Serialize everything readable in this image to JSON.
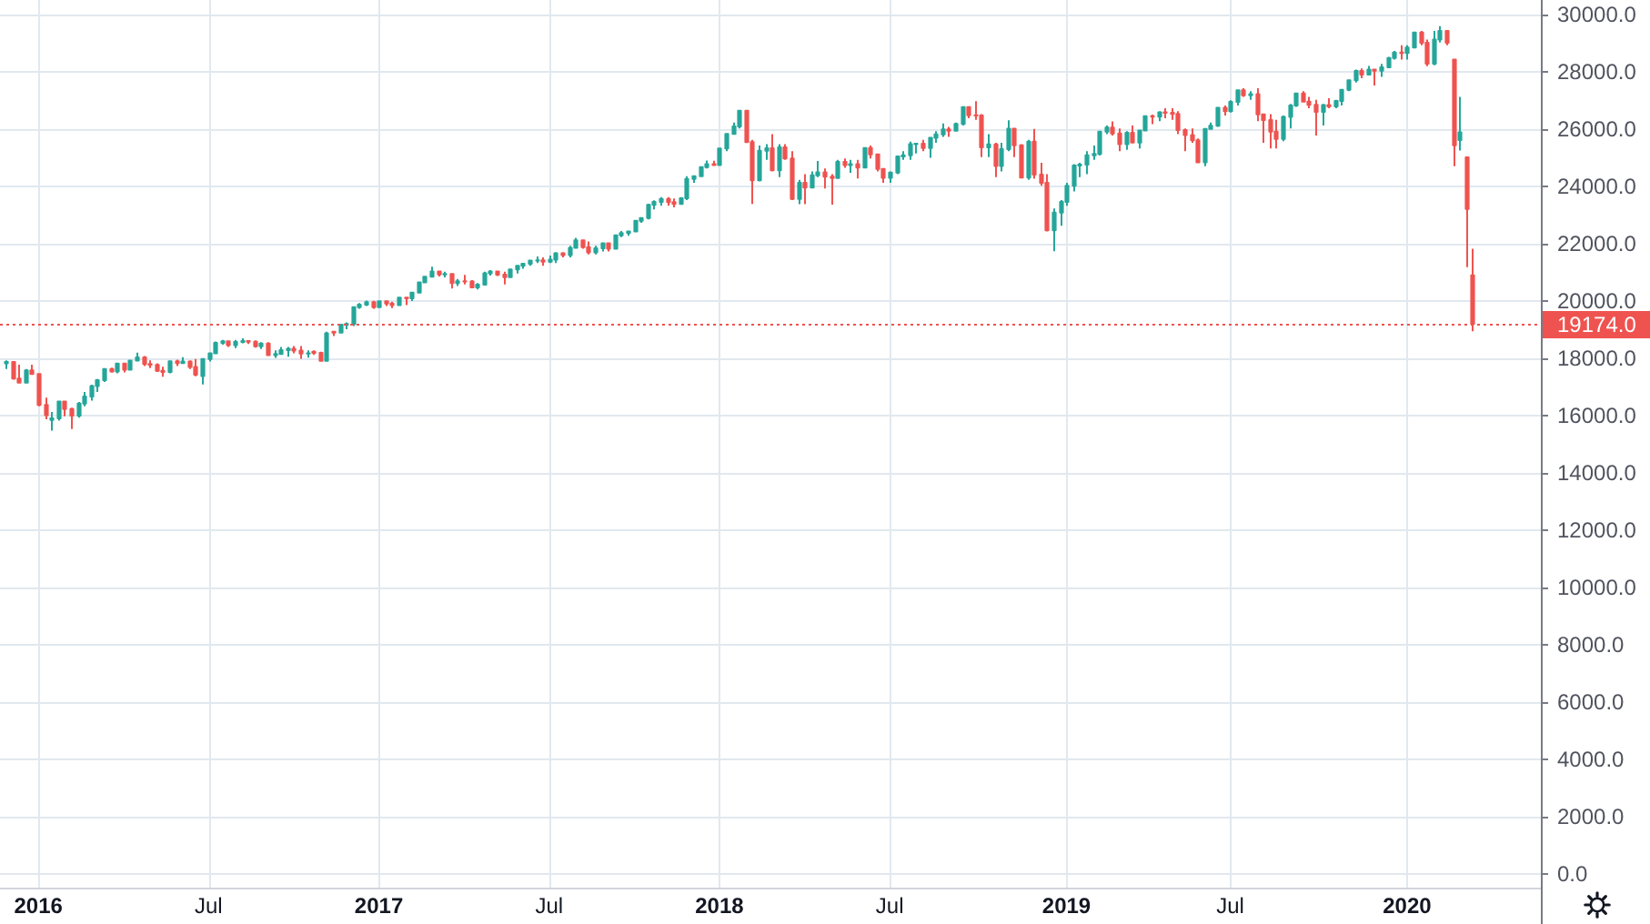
{
  "chart_data": {
    "type": "candlestick",
    "x": [
      "2015-11-30",
      "2015-12-07",
      "2015-12-14",
      "2015-12-21",
      "2015-12-28",
      "2016-01-04",
      "2016-01-11",
      "2016-01-18",
      "2016-01-25",
      "2016-02-01",
      "2016-02-08",
      "2016-02-15",
      "2016-02-22",
      "2016-02-29",
      "2016-03-07",
      "2016-03-14",
      "2016-03-21",
      "2016-03-28",
      "2016-04-04",
      "2016-04-11",
      "2016-04-18",
      "2016-04-25",
      "2016-05-02",
      "2016-05-09",
      "2016-05-16",
      "2016-05-23",
      "2016-05-30",
      "2016-06-06",
      "2016-06-13",
      "2016-06-20",
      "2016-06-27",
      "2016-07-04",
      "2016-07-11",
      "2016-07-18",
      "2016-07-25",
      "2016-08-01",
      "2016-08-08",
      "2016-08-15",
      "2016-08-22",
      "2016-08-29",
      "2016-09-05",
      "2016-09-12",
      "2016-09-19",
      "2016-09-26",
      "2016-10-03",
      "2016-10-10",
      "2016-10-17",
      "2016-10-24",
      "2016-10-31",
      "2016-11-07",
      "2016-11-14",
      "2016-11-21",
      "2016-11-28",
      "2016-12-05",
      "2016-12-12",
      "2016-12-19",
      "2016-12-26",
      "2017-01-02",
      "2017-01-09",
      "2017-01-16",
      "2017-01-23",
      "2017-01-30",
      "2017-02-06",
      "2017-02-13",
      "2017-02-20",
      "2017-02-27",
      "2017-03-06",
      "2017-03-13",
      "2017-03-20",
      "2017-03-27",
      "2017-04-03",
      "2017-04-10",
      "2017-04-17",
      "2017-04-24",
      "2017-05-01",
      "2017-05-08",
      "2017-05-15",
      "2017-05-22",
      "2017-05-29",
      "2017-06-05",
      "2017-06-12",
      "2017-06-19",
      "2017-06-26",
      "2017-07-03",
      "2017-07-10",
      "2017-07-17",
      "2017-07-24",
      "2017-07-31",
      "2017-08-07",
      "2017-08-14",
      "2017-08-21",
      "2017-08-28",
      "2017-09-04",
      "2017-09-11",
      "2017-09-18",
      "2017-09-25",
      "2017-10-02",
      "2017-10-09",
      "2017-10-16",
      "2017-10-23",
      "2017-10-30",
      "2017-11-06",
      "2017-11-13",
      "2017-11-20",
      "2017-11-27",
      "2017-12-04",
      "2017-12-11",
      "2017-12-18",
      "2017-12-25",
      "2018-01-01",
      "2018-01-08",
      "2018-01-15",
      "2018-01-22",
      "2018-01-29",
      "2018-02-05",
      "2018-02-12",
      "2018-02-19",
      "2018-02-26",
      "2018-03-05",
      "2018-03-12",
      "2018-03-19",
      "2018-03-26",
      "2018-04-02",
      "2018-04-09",
      "2018-04-16",
      "2018-04-23",
      "2018-04-30",
      "2018-05-07",
      "2018-05-14",
      "2018-05-21",
      "2018-05-28",
      "2018-06-04",
      "2018-06-11",
      "2018-06-18",
      "2018-06-25",
      "2018-07-02",
      "2018-07-09",
      "2018-07-16",
      "2018-07-23",
      "2018-07-30",
      "2018-08-06",
      "2018-08-13",
      "2018-08-20",
      "2018-08-27",
      "2018-09-03",
      "2018-09-10",
      "2018-09-17",
      "2018-09-24",
      "2018-10-01",
      "2018-10-08",
      "2018-10-15",
      "2018-10-22",
      "2018-10-29",
      "2018-11-05",
      "2018-11-12",
      "2018-11-19",
      "2018-11-26",
      "2018-12-03",
      "2018-12-10",
      "2018-12-17",
      "2018-12-24",
      "2018-12-31",
      "2019-01-07",
      "2019-01-14",
      "2019-01-21",
      "2019-01-28",
      "2019-02-04",
      "2019-02-11",
      "2019-02-18",
      "2019-02-25",
      "2019-03-04",
      "2019-03-11",
      "2019-03-18",
      "2019-03-25",
      "2019-04-01",
      "2019-04-08",
      "2019-04-15",
      "2019-04-22",
      "2019-04-29",
      "2019-05-06",
      "2019-05-13",
      "2019-05-20",
      "2019-05-27",
      "2019-06-03",
      "2019-06-10",
      "2019-06-17",
      "2019-06-24",
      "2019-07-01",
      "2019-07-08",
      "2019-07-15",
      "2019-07-22",
      "2019-07-29",
      "2019-08-05",
      "2019-08-12",
      "2019-08-19",
      "2019-08-26",
      "2019-09-02",
      "2019-09-09",
      "2019-09-16",
      "2019-09-23",
      "2019-09-30",
      "2019-10-07",
      "2019-10-14",
      "2019-10-21",
      "2019-10-28",
      "2019-11-04",
      "2019-11-11",
      "2019-11-18",
      "2019-11-25",
      "2019-12-02",
      "2019-12-09",
      "2019-12-16",
      "2019-12-23",
      "2019-12-30",
      "2020-01-06",
      "2020-01-13",
      "2020-01-20",
      "2020-01-27",
      "2020-02-03",
      "2020-02-10",
      "2020-02-17",
      "2020-02-24",
      "2020-03-02",
      "2020-03-09",
      "2020-03-16"
    ],
    "ohlc": [
      [
        17798,
        17900,
        17600,
        17847
      ],
      [
        17847,
        17880,
        17230,
        17265
      ],
      [
        17265,
        17750,
        17120,
        17128
      ],
      [
        17128,
        17600,
        17120,
        17552
      ],
      [
        17552,
        17750,
        17420,
        17425
      ],
      [
        17425,
        17425,
        16300,
        16346
      ],
      [
        16346,
        16600,
        15850,
        15988
      ],
      [
        15820,
        16100,
        15450,
        15882
      ],
      [
        15882,
        16500,
        15800,
        16466
      ],
      [
        16466,
        16500,
        15950,
        16204
      ],
      [
        16204,
        16250,
        15503,
        15973
      ],
      [
        15973,
        16450,
        15900,
        16392
      ],
      [
        16392,
        16800,
        16300,
        16640
      ],
      [
        16640,
        17050,
        16500,
        17006
      ],
      [
        17006,
        17250,
        16800,
        17213
      ],
      [
        17213,
        17620,
        17150,
        17602
      ],
      [
        17602,
        17650,
        17470,
        17515
      ],
      [
        17515,
        17800,
        17450,
        17792
      ],
      [
        17792,
        17800,
        17480,
        17577
      ],
      [
        17577,
        17920,
        17550,
        17897
      ],
      [
        17897,
        18170,
        17880,
        18003
      ],
      [
        18003,
        18050,
        17700,
        17773
      ],
      [
        17773,
        17900,
        17630,
        17740
      ],
      [
        17740,
        17800,
        17500,
        17535
      ],
      [
        17535,
        17680,
        17330,
        17500
      ],
      [
        17500,
        17890,
        17450,
        17873
      ],
      [
        17873,
        17930,
        17700,
        17807
      ],
      [
        17807,
        18010,
        17780,
        17865
      ],
      [
        17865,
        17900,
        17600,
        17675
      ],
      [
        17675,
        17950,
        17350,
        17400
      ],
      [
        17355,
        17950,
        17063,
        17949
      ],
      [
        17949,
        18170,
        17860,
        18147
      ],
      [
        18147,
        18560,
        18140,
        18516
      ],
      [
        18516,
        18620,
        18450,
        18570
      ],
      [
        18570,
        18600,
        18370,
        18432
      ],
      [
        18432,
        18620,
        18330,
        18543
      ],
      [
        18543,
        18670,
        18500,
        18576
      ],
      [
        18576,
        18600,
        18470,
        18552
      ],
      [
        18552,
        18600,
        18350,
        18395
      ],
      [
        18395,
        18540,
        18300,
        18492
      ],
      [
        18492,
        18540,
        18050,
        18085
      ],
      [
        18085,
        18250,
        17990,
        18124
      ],
      [
        18124,
        18370,
        18100,
        18261
      ],
      [
        18261,
        18370,
        18030,
        18308
      ],
      [
        18308,
        18400,
        18150,
        18240
      ],
      [
        18240,
        18400,
        17960,
        18138
      ],
      [
        18138,
        18250,
        18000,
        18145
      ],
      [
        18200,
        18250,
        18090,
        18161
      ],
      [
        18161,
        18200,
        17880,
        17888
      ],
      [
        17888,
        18900,
        17880,
        18847
      ],
      [
        18900,
        18935,
        18750,
        18868
      ],
      [
        18868,
        19152,
        18860,
        19152
      ],
      [
        19152,
        19225,
        18990,
        19171
      ],
      [
        19171,
        19760,
        19100,
        19757
      ],
      [
        19757,
        19900,
        19700,
        19843
      ],
      [
        19843,
        19990,
        19800,
        19934
      ],
      [
        19934,
        19980,
        19700,
        19763
      ],
      [
        19763,
        19999,
        19760,
        19964
      ],
      [
        19964,
        19980,
        19800,
        19886
      ],
      [
        19886,
        19950,
        19730,
        19827
      ],
      [
        19827,
        20125,
        19800,
        20094
      ],
      [
        20094,
        20125,
        19830,
        20071
      ],
      [
        20071,
        20300,
        19970,
        20269
      ],
      [
        20269,
        20640,
        20260,
        20624
      ],
      [
        20624,
        20850,
        20600,
        20822
      ],
      [
        20822,
        21170,
        20800,
        21006
      ],
      [
        21006,
        21010,
        20830,
        20903
      ],
      [
        20903,
        21000,
        20800,
        20915
      ],
      [
        20915,
        20950,
        20410,
        20597
      ],
      [
        20597,
        20740,
        20500,
        20663
      ],
      [
        20663,
        20890,
        20550,
        20656
      ],
      [
        20656,
        20700,
        20450,
        20453
      ],
      [
        20453,
        20600,
        20380,
        20548
      ],
      [
        20548,
        21000,
        20540,
        20941
      ],
      [
        20941,
        21050,
        20860,
        21007
      ],
      [
        21007,
        21020,
        20850,
        20897
      ],
      [
        20897,
        21000,
        20553,
        20804
      ],
      [
        20804,
        21100,
        20800,
        21080
      ],
      [
        21080,
        21230,
        20930,
        21206
      ],
      [
        21206,
        21305,
        21100,
        21272
      ],
      [
        21272,
        21400,
        21200,
        21384
      ],
      [
        21384,
        21530,
        21300,
        21395
      ],
      [
        21395,
        21500,
        21200,
        21350
      ],
      [
        21350,
        21560,
        21300,
        21414
      ],
      [
        21414,
        21680,
        21300,
        21638
      ],
      [
        21638,
        21680,
        21500,
        21580
      ],
      [
        21580,
        21900,
        21500,
        21830
      ],
      [
        21830,
        22180,
        21800,
        22092
      ],
      [
        22092,
        22120,
        21800,
        21858
      ],
      [
        21858,
        22050,
        21600,
        21674
      ],
      [
        21674,
        21900,
        21600,
        21814
      ],
      [
        21814,
        22000,
        21700,
        21988
      ],
      [
        21988,
        22000,
        21700,
        21798
      ],
      [
        21798,
        22280,
        21790,
        22268
      ],
      [
        22268,
        22420,
        22200,
        22349
      ],
      [
        22349,
        22420,
        22250,
        22405
      ],
      [
        22405,
        22780,
        22400,
        22774
      ],
      [
        22774,
        22900,
        22700,
        22871
      ],
      [
        22871,
        23370,
        22820,
        23329
      ],
      [
        23329,
        23490,
        23170,
        23434
      ],
      [
        23434,
        23600,
        23300,
        23539
      ],
      [
        23539,
        23600,
        23300,
        23422
      ],
      [
        23422,
        23550,
        23240,
        23358
      ],
      [
        23358,
        23600,
        23350,
        23558
      ],
      [
        23558,
        24330,
        23500,
        24231
      ],
      [
        24231,
        24350,
        24100,
        24329
      ],
      [
        24329,
        24670,
        24300,
        24651
      ],
      [
        24651,
        24880,
        24600,
        24754
      ],
      [
        24754,
        24870,
        24700,
        24719
      ],
      [
        24719,
        25300,
        24700,
        25295
      ],
      [
        25295,
        25810,
        25200,
        25803
      ],
      [
        25803,
        26200,
        25800,
        26071
      ],
      [
        26071,
        26620,
        26000,
        26616
      ],
      [
        26616,
        26620,
        25500,
        25521
      ],
      [
        25521,
        25600,
        23360,
        24190
      ],
      [
        24190,
        25400,
        24150,
        25219
      ],
      [
        25219,
        25450,
        24900,
        25310
      ],
      [
        25310,
        25800,
        24500,
        24538
      ],
      [
        24538,
        25450,
        24300,
        25336
      ],
      [
        25336,
        25450,
        24900,
        24946
      ],
      [
        24946,
        25200,
        23500,
        23533
      ],
      [
        23533,
        24200,
        23350,
        24103
      ],
      [
        24103,
        24400,
        23350,
        23933
      ],
      [
        23933,
        24500,
        23900,
        24360
      ],
      [
        24360,
        24860,
        24300,
        24463
      ],
      [
        24463,
        24600,
        23900,
        24311
      ],
      [
        24311,
        24400,
        23340,
        24263
      ],
      [
        24263,
        24900,
        24250,
        24831
      ],
      [
        24831,
        24950,
        24620,
        24715
      ],
      [
        24715,
        24900,
        24450,
        24753
      ],
      [
        24753,
        24900,
        24250,
        24635
      ],
      [
        24635,
        25330,
        24600,
        25317
      ],
      [
        25317,
        25400,
        24950,
        25090
      ],
      [
        25090,
        25100,
        24500,
        24580
      ],
      [
        24580,
        24600,
        24100,
        24271
      ],
      [
        24271,
        24500,
        24100,
        24456
      ],
      [
        24456,
        25050,
        24400,
        25019
      ],
      [
        25019,
        25200,
        24900,
        25058
      ],
      [
        25058,
        25540,
        24900,
        25451
      ],
      [
        25451,
        25500,
        25120,
        25463
      ],
      [
        25463,
        25600,
        25200,
        25313
      ],
      [
        25313,
        25700,
        24970,
        25669
      ],
      [
        25669,
        25900,
        25500,
        25790
      ],
      [
        25790,
        26170,
        25700,
        25965
      ],
      [
        25965,
        26050,
        25700,
        25917
      ],
      [
        25917,
        26200,
        25900,
        26155
      ],
      [
        26155,
        26770,
        26100,
        26743
      ],
      [
        26743,
        26770,
        26350,
        26458
      ],
      [
        26458,
        26950,
        26300,
        26447
      ],
      [
        26447,
        26500,
        25000,
        25340
      ],
      [
        25340,
        25800,
        25000,
        25444
      ],
      [
        25444,
        25500,
        24300,
        24688
      ],
      [
        24688,
        25500,
        24500,
        25271
      ],
      [
        25271,
        26280,
        25200,
        25989
      ],
      [
        25989,
        26000,
        25000,
        25413
      ],
      [
        25413,
        25450,
        24270,
        24286
      ],
      [
        24286,
        25600,
        24200,
        25538
      ],
      [
        25538,
        25980,
        24240,
        24389
      ],
      [
        24389,
        24800,
        24000,
        24100
      ],
      [
        24100,
        24400,
        22400,
        22445
      ],
      [
        22445,
        23200,
        21712,
        23062
      ],
      [
        23062,
        23500,
        22600,
        23433
      ],
      [
        23433,
        24100,
        23300,
        23996
      ],
      [
        23996,
        24750,
        23800,
        24706
      ],
      [
        24706,
        24800,
        24300,
        24737
      ],
      [
        24737,
        25200,
        24400,
        25064
      ],
      [
        25064,
        25400,
        24900,
        25106
      ],
      [
        25106,
        25900,
        25050,
        25883
      ],
      [
        25883,
        26100,
        25800,
        26031
      ],
      [
        26031,
        26240,
        25750,
        25820
      ],
      [
        25820,
        26000,
        25200,
        25450
      ],
      [
        25450,
        25900,
        25250,
        25849
      ],
      [
        25849,
        26100,
        25500,
        25502
      ],
      [
        25502,
        25950,
        25300,
        25929
      ],
      [
        25929,
        26450,
        25900,
        26425
      ],
      [
        26425,
        26480,
        26150,
        26412
      ],
      [
        26412,
        26600,
        26250,
        26559
      ],
      [
        26559,
        26700,
        26350,
        26543
      ],
      [
        26543,
        26700,
        26300,
        26505
      ],
      [
        26505,
        26600,
        25800,
        25942
      ],
      [
        25942,
        26000,
        25200,
        25764
      ],
      [
        25764,
        26000,
        25500,
        25585
      ],
      [
        25585,
        25650,
        24800,
        24815
      ],
      [
        24815,
        25990,
        24680,
        25984
      ],
      [
        25984,
        26200,
        25950,
        26090
      ],
      [
        26090,
        26750,
        26050,
        26719
      ],
      [
        26719,
        26800,
        26450,
        26600
      ],
      [
        26600,
        26980,
        26550,
        26922
      ],
      [
        26922,
        27350,
        26800,
        27332
      ],
      [
        27332,
        27400,
        27100,
        27154
      ],
      [
        27154,
        27300,
        27000,
        27192
      ],
      [
        27192,
        27400,
        26250,
        26485
      ],
      [
        26485,
        26500,
        25500,
        26287
      ],
      [
        26287,
        26500,
        25300,
        25886
      ],
      [
        25886,
        26300,
        25300,
        25629
      ],
      [
        25629,
        26450,
        25550,
        26403
      ],
      [
        26403,
        26850,
        26000,
        26797
      ],
      [
        26797,
        27250,
        26750,
        27220
      ],
      [
        27220,
        27300,
        26900,
        26935
      ],
      [
        26935,
        27100,
        26700,
        26820
      ],
      [
        26820,
        27000,
        25750,
        26573
      ],
      [
        26573,
        26850,
        26100,
        26816
      ],
      [
        26816,
        27050,
        26700,
        26770
      ],
      [
        26770,
        27000,
        26700,
        26958
      ],
      [
        26958,
        27350,
        26800,
        27347
      ],
      [
        27347,
        27700,
        27300,
        27681
      ],
      [
        27681,
        28050,
        27600,
        28005
      ],
      [
        28005,
        28090,
        27750,
        27876
      ],
      [
        27876,
        28175,
        27850,
        28051
      ],
      [
        28051,
        28070,
        27500,
        28015
      ],
      [
        28015,
        28250,
        27800,
        28135
      ],
      [
        28135,
        28500,
        28100,
        28455
      ],
      [
        28455,
        28700,
        28400,
        28645
      ],
      [
        28645,
        28900,
        28400,
        28634
      ],
      [
        28634,
        28900,
        28400,
        28824
      ],
      [
        28824,
        29370,
        28800,
        29348
      ],
      [
        29348,
        29400,
        28900,
        28990
      ],
      [
        28990,
        29100,
        28170,
        28256
      ],
      [
        28256,
        29400,
        28200,
        29102
      ],
      [
        29102,
        29570,
        29000,
        29398
      ],
      [
        29398,
        29410,
        28900,
        28992
      ],
      [
        28402,
        28402,
        24681,
        25409
      ],
      [
        25590,
        27102,
        25226,
        25864
      ],
      [
        24992,
        24992,
        21154,
        23185
      ],
      [
        20870,
        21800,
        18917,
        19174
      ]
    ],
    "colors": [
      "#26a69a",
      "#ef5350",
      "#ef5350",
      "#26a69a",
      "#ef5350",
      "#ef5350",
      "#ef5350",
      "#26a69a",
      "#26a69a",
      "#ef5350",
      "#ef5350",
      "#26a69a",
      "#26a69a",
      "#26a69a",
      "#26a69a",
      "#26a69a",
      "#ef5350",
      "#26a69a",
      "#ef5350",
      "#26a69a",
      "#26a69a",
      "#ef5350",
      "#ef5350",
      "#ef5350",
      "#ef5350",
      "#26a69a",
      "#ef5350",
      "#26a69a",
      "#ef5350",
      "#ef5350",
      "#26a69a",
      "#26a69a",
      "#26a69a",
      "#26a69a",
      "#ef5350",
      "#26a69a",
      "#26a69a",
      "#ef5350",
      "#ef5350",
      "#26a69a",
      "#ef5350",
      "#26a69a",
      "#26a69a",
      "#26a69a",
      "#ef5350",
      "#ef5350",
      "#26a69a",
      "#ef5350",
      "#ef5350",
      "#26a69a",
      "#ef5350",
      "#26a69a",
      "#26a69a",
      "#26a69a",
      "#26a69a",
      "#26a69a",
      "#ef5350",
      "#26a69a",
      "#ef5350",
      "#ef5350",
      "#26a69a",
      "#ef5350",
      "#26a69a",
      "#26a69a",
      "#26a69a",
      "#26a69a",
      "#ef5350",
      "#26a69a",
      "#ef5350",
      "#26a69a",
      "#ef5350",
      "#ef5350",
      "#26a69a",
      "#26a69a",
      "#26a69a",
      "#ef5350",
      "#ef5350",
      "#26a69a",
      "#26a69a",
      "#26a69a",
      "#26a69a",
      "#26a69a",
      "#ef5350",
      "#26a69a",
      "#26a69a",
      "#ef5350",
      "#26a69a",
      "#26a69a",
      "#ef5350",
      "#ef5350",
      "#26a69a",
      "#26a69a",
      "#ef5350",
      "#26a69a",
      "#26a69a",
      "#26a69a",
      "#26a69a",
      "#26a69a",
      "#26a69a",
      "#26a69a",
      "#26a69a",
      "#ef5350",
      "#ef5350",
      "#26a69a",
      "#26a69a",
      "#26a69a",
      "#26a69a",
      "#26a69a",
      "#ef5350",
      "#26a69a",
      "#26a69a",
      "#26a69a",
      "#26a69a",
      "#ef5350",
      "#ef5350",
      "#26a69a",
      "#26a69a",
      "#ef5350",
      "#26a69a",
      "#ef5350",
      "#ef5350",
      "#26a69a",
      "#ef5350",
      "#26a69a",
      "#26a69a",
      "#ef5350",
      "#ef5350",
      "#26a69a",
      "#ef5350",
      "#26a69a",
      "#ef5350",
      "#26a69a",
      "#ef5350",
      "#ef5350",
      "#ef5350",
      "#26a69a",
      "#26a69a",
      "#26a69a",
      "#26a69a",
      "#26a69a",
      "#ef5350",
      "#26a69a",
      "#26a69a",
      "#26a69a",
      "#ef5350",
      "#26a69a",
      "#26a69a",
      "#ef5350",
      "#ef5350",
      "#ef5350",
      "#26a69a",
      "#ef5350",
      "#26a69a",
      "#26a69a",
      "#ef5350",
      "#ef5350",
      "#26a69a",
      "#ef5350",
      "#ef5350",
      "#ef5350",
      "#26a69a",
      "#26a69a",
      "#26a69a",
      "#26a69a",
      "#26a69a",
      "#26a69a",
      "#26a69a",
      "#26a69a",
      "#26a69a",
      "#ef5350",
      "#ef5350",
      "#26a69a",
      "#ef5350",
      "#26a69a",
      "#26a69a",
      "#ef5350",
      "#26a69a",
      "#ef5350",
      "#ef5350",
      "#ef5350",
      "#ef5350",
      "#ef5350",
      "#ef5350",
      "#26a69a",
      "#26a69a",
      "#26a69a",
      "#ef5350",
      "#26a69a",
      "#26a69a",
      "#ef5350",
      "#26a69a",
      "#ef5350",
      "#ef5350",
      "#ef5350",
      "#ef5350",
      "#26a69a",
      "#26a69a",
      "#26a69a",
      "#ef5350",
      "#ef5350",
      "#ef5350",
      "#26a69a",
      "#ef5350",
      "#26a69a",
      "#26a69a",
      "#26a69a",
      "#26a69a",
      "#ef5350",
      "#26a69a",
      "#ef5350",
      "#26a69a",
      "#26a69a",
      "#26a69a",
      "#ef5350",
      "#26a69a",
      "#26a69a",
      "#ef5350",
      "#ef5350",
      "#26a69a",
      "#26a69a",
      "#ef5350",
      "#ef5350",
      "#26a69a",
      "#ef5350",
      "#ef5350"
    ],
    "xlim": [
      "2015-11-24",
      "2020-05-28"
    ],
    "xticks": [
      {
        "value": "2016-01-04",
        "label": "2016"
      },
      {
        "value": "2016-07-04",
        "label": "Jul"
      },
      {
        "value": "2017-01-02",
        "label": "2017"
      },
      {
        "value": "2017-07-03",
        "label": "Jul"
      },
      {
        "value": "2018-01-01",
        "label": "2018"
      },
      {
        "value": "2018-07-02",
        "label": "Jul"
      },
      {
        "value": "2019-01-07",
        "label": "2019"
      },
      {
        "value": "2019-07-01",
        "label": "Jul"
      },
      {
        "value": "2020-01-06",
        "label": "2020"
      }
    ],
    "ylim": [
      -500,
      30480
    ],
    "yticks": [
      {
        "value": 0,
        "label": "0.0"
      },
      {
        "value": 2000,
        "label": "2000.0"
      },
      {
        "value": 4000,
        "label": "4000.0"
      },
      {
        "value": 6000,
        "label": "6000.0"
      },
      {
        "value": 8000,
        "label": "8000.0"
      },
      {
        "value": 10000,
        "label": "10000.0"
      },
      {
        "value": 12000,
        "label": "12000.0"
      },
      {
        "value": 14000,
        "label": "14000.0"
      },
      {
        "value": 16000,
        "label": "16000.0"
      },
      {
        "value": 18000,
        "label": "18000.0"
      },
      {
        "value": 20000,
        "label": "20000.0"
      },
      {
        "value": 22000,
        "label": "22000.0"
      },
      {
        "value": 24000,
        "label": "24000.0"
      },
      {
        "value": 26000,
        "label": "26000.0"
      },
      {
        "value": 28000,
        "label": "28000.0"
      },
      {
        "value": 30000,
        "label": "30000.0"
      }
    ],
    "grid": true,
    "ref_lines": [
      {
        "axis": "y",
        "value": 19174,
        "label": "19174.0",
        "color": "#ef5350",
        "line_style": "dotted"
      }
    ]
  }
}
